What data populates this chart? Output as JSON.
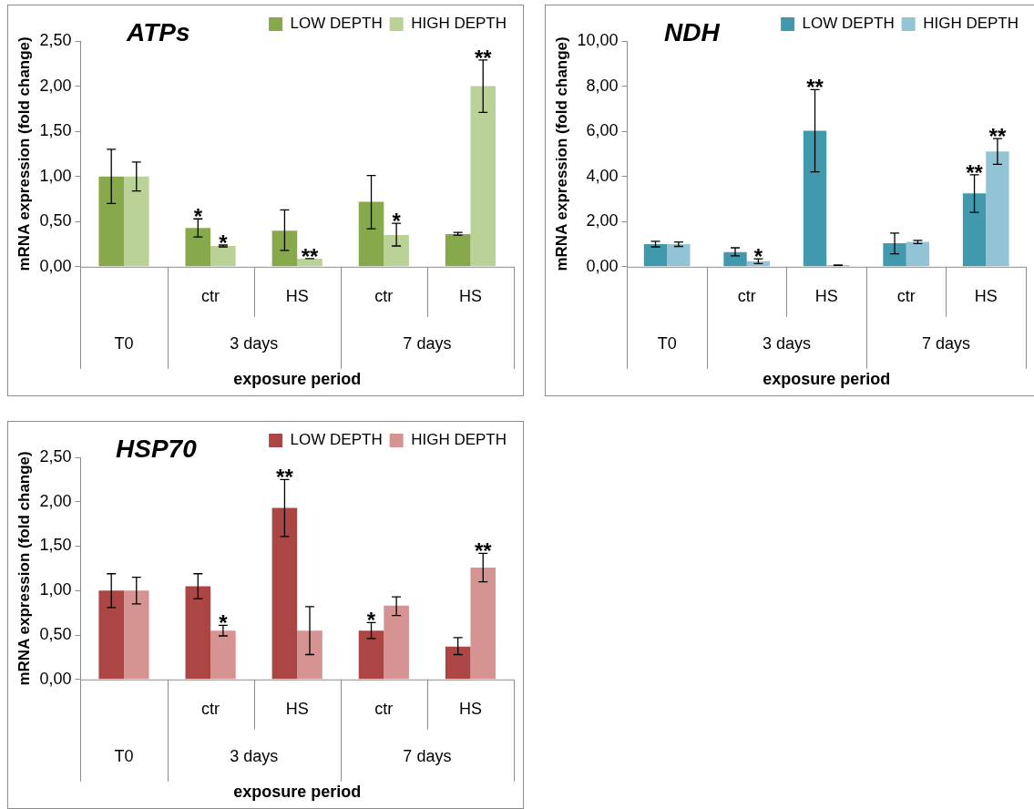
{
  "chart_data": [
    {
      "type": "bar",
      "title": "ATPs",
      "xlabel": "exposure period",
      "ylabel": "mRNA expression (fold change)",
      "categories": [
        null,
        "ctr",
        "HS",
        "ctr",
        "HS"
      ],
      "annotations": [
        "T0",
        "3 days",
        "7 days"
      ],
      "legend": "top right",
      "ylim": [
        0,
        2.5
      ],
      "yticks": [
        {
          "value": 0,
          "label": "0,00"
        },
        {
          "value": 0.5,
          "label": "0,50"
        },
        {
          "value": 1,
          "label": "1,00"
        },
        {
          "value": 1.5,
          "label": "1,50"
        },
        {
          "value": 2,
          "label": "2,00"
        },
        {
          "value": 2.5,
          "label": "2,50"
        }
      ],
      "series": [
        {
          "name": "LOW DEPTH",
          "color": "#88a84c",
          "values": [
            1.0,
            0.43,
            0.4,
            0.72,
            0.36
          ],
          "errors": [
            [
              0.7,
              1.3
            ],
            [
              0.33,
              0.53
            ],
            [
              0.18,
              0.63
            ],
            [
              0.42,
              1.01
            ],
            [
              0.35,
              0.38
            ]
          ],
          "value_labels": [
            null,
            "*",
            null,
            null,
            null
          ]
        },
        {
          "name": "HIGH DEPTH",
          "color": "#bad297",
          "values": [
            1.0,
            0.23,
            0.09,
            0.35,
            2.0
          ],
          "errors": [
            [
              0.84,
              1.16
            ],
            [
              0.22,
              0.24
            ],
            [
              0.09,
              0.09
            ],
            [
              0.23,
              0.48
            ],
            [
              1.71,
              2.29
            ]
          ],
          "value_labels": [
            null,
            "*",
            "**",
            "*",
            "**"
          ]
        }
      ]
    },
    {
      "type": "bar",
      "title": "NDH",
      "xlabel": "exposure period",
      "ylabel": "mRNA expression (fold change)",
      "categories": [
        null,
        "ctr",
        "HS",
        "ctr",
        "HS"
      ],
      "annotations": [
        "T0",
        "3 days",
        "7 days"
      ],
      "legend": "top right",
      "ylim": [
        0,
        10
      ],
      "yticks": [
        {
          "value": 0,
          "label": "0,00"
        },
        {
          "value": 2,
          "label": "2,00"
        },
        {
          "value": 4,
          "label": "4,00"
        },
        {
          "value": 6,
          "label": "6,00"
        },
        {
          "value": 8,
          "label": "8,00"
        },
        {
          "value": 10,
          "label": "10,00"
        }
      ],
      "series": [
        {
          "name": "LOW DEPTH",
          "color": "#4199ae",
          "values": [
            1.0,
            0.65,
            6.03,
            1.04,
            3.25
          ],
          "errors": [
            [
              0.88,
              1.13
            ],
            [
              0.48,
              0.84
            ],
            [
              4.2,
              7.85
            ],
            [
              0.57,
              1.49
            ],
            [
              2.41,
              4.07
            ]
          ],
          "value_labels": [
            null,
            null,
            "**",
            null,
            "**"
          ]
        },
        {
          "name": "HIGH DEPTH",
          "color": "#93c4d5",
          "values": [
            1.0,
            0.24,
            0.07,
            1.1,
            5.11
          ],
          "errors": [
            [
              0.9,
              1.1
            ],
            [
              0.14,
              0.35
            ],
            [
              0.06,
              0.08
            ],
            [
              1.03,
              1.17
            ],
            [
              4.54,
              5.68
            ]
          ],
          "value_labels": [
            null,
            "*",
            null,
            null,
            "**"
          ]
        }
      ]
    },
    {
      "type": "bar",
      "title": "HSP70",
      "xlabel": "exposure period",
      "ylabel": "mRNA expression (fold change)",
      "categories": [
        null,
        "ctr",
        "HS",
        "ctr",
        "HS"
      ],
      "annotations": [
        "T0",
        "3 days",
        "7 days"
      ],
      "legend": "top right",
      "ylim": [
        0,
        2.5
      ],
      "yticks": [
        {
          "value": 0,
          "label": "0,00"
        },
        {
          "value": 0.5,
          "label": "0,50"
        },
        {
          "value": 1,
          "label": "1,00"
        },
        {
          "value": 1.5,
          "label": "1,50"
        },
        {
          "value": 2,
          "label": "2,00"
        },
        {
          "value": 2.5,
          "label": "2,50"
        }
      ],
      "series": [
        {
          "name": "LOW DEPTH",
          "color": "#ab4644",
          "values": [
            1.0,
            1.05,
            1.93,
            0.55,
            0.37
          ],
          "errors": [
            [
              0.81,
              1.19
            ],
            [
              0.91,
              1.19
            ],
            [
              1.61,
              2.25
            ],
            [
              0.46,
              0.64
            ],
            [
              0.28,
              0.47
            ]
          ],
          "value_labels": [
            null,
            null,
            "**",
            "*",
            null
          ]
        },
        {
          "name": "HIGH DEPTH",
          "color": "#d59391",
          "values": [
            1.0,
            0.55,
            0.55,
            0.83,
            1.26
          ],
          "errors": [
            [
              0.85,
              1.15
            ],
            [
              0.49,
              0.61
            ],
            [
              0.28,
              0.82
            ],
            [
              0.72,
              0.93
            ],
            [
              1.1,
              1.42
            ]
          ],
          "value_labels": [
            null,
            "*",
            null,
            null,
            "**"
          ]
        }
      ]
    }
  ]
}
